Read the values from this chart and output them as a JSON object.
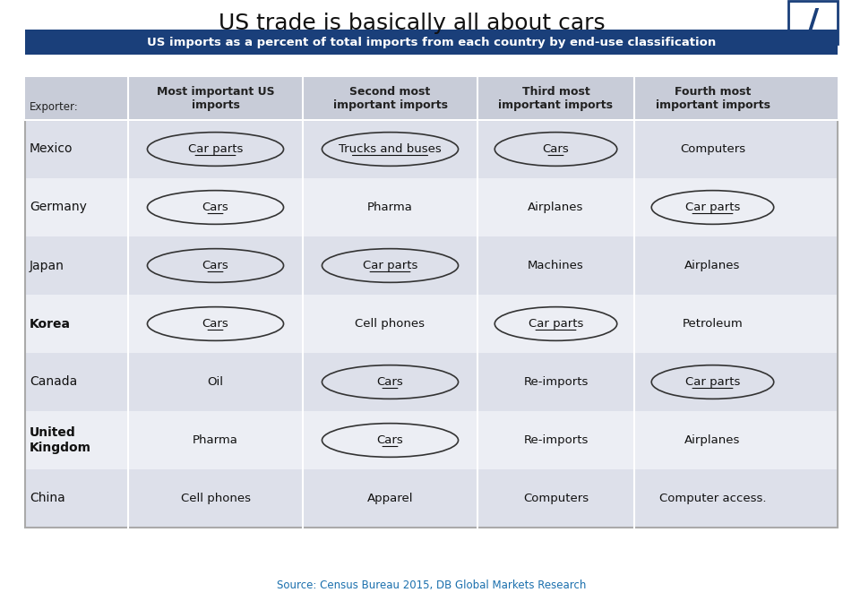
{
  "title": "US trade is basically all about cars",
  "subtitle": "US imports as a percent of total imports from each country by end-use classification",
  "source": "Source: Census Bureau 2015, DB Global Markets Research",
  "header_labels": [
    "Exporter:",
    "Most important US\nimports",
    "Second most\nimportant imports",
    "Third most\nimportant imports",
    "Fourth most\nimportant imports"
  ],
  "rows": [
    {
      "country": "Mexico",
      "bold": false,
      "cells": [
        {
          "text": "Car parts",
          "ellipse": true,
          "underline": true
        },
        {
          "text": "Trucks and buses",
          "ellipse": true,
          "underline": true
        },
        {
          "text": "Cars",
          "ellipse": true,
          "underline": true
        },
        {
          "text": "Computers",
          "ellipse": false,
          "underline": false
        }
      ]
    },
    {
      "country": "Germany",
      "bold": false,
      "cells": [
        {
          "text": "Cars",
          "ellipse": true,
          "underline": true
        },
        {
          "text": "Pharma",
          "ellipse": false,
          "underline": false
        },
        {
          "text": "Airplanes",
          "ellipse": false,
          "underline": false
        },
        {
          "text": "Car parts",
          "ellipse": true,
          "underline": true
        }
      ]
    },
    {
      "country": "Japan",
      "bold": false,
      "cells": [
        {
          "text": "Cars",
          "ellipse": true,
          "underline": true
        },
        {
          "text": "Car parts",
          "ellipse": true,
          "underline": true
        },
        {
          "text": "Machines",
          "ellipse": false,
          "underline": false
        },
        {
          "text": "Airplanes",
          "ellipse": false,
          "underline": false
        }
      ]
    },
    {
      "country": "Korea",
      "bold": true,
      "cells": [
        {
          "text": "Cars",
          "ellipse": true,
          "underline": true
        },
        {
          "text": "Cell phones",
          "ellipse": false,
          "underline": false
        },
        {
          "text": "Car parts",
          "ellipse": true,
          "underline": true
        },
        {
          "text": "Petroleum",
          "ellipse": false,
          "underline": false
        }
      ]
    },
    {
      "country": "Canada",
      "bold": false,
      "cells": [
        {
          "text": "Oil",
          "ellipse": false,
          "underline": false
        },
        {
          "text": "Cars",
          "ellipse": true,
          "underline": true
        },
        {
          "text": "Re-imports",
          "ellipse": false,
          "underline": false
        },
        {
          "text": "Car parts",
          "ellipse": true,
          "underline": true
        }
      ]
    },
    {
      "country": "United\nKingdom",
      "bold": true,
      "cells": [
        {
          "text": "Pharma",
          "ellipse": false,
          "underline": false
        },
        {
          "text": "Cars",
          "ellipse": true,
          "underline": true
        },
        {
          "text": "Re-imports",
          "ellipse": false,
          "underline": false
        },
        {
          "text": "Airplanes",
          "ellipse": false,
          "underline": false
        }
      ]
    },
    {
      "country": "China",
      "bold": false,
      "cells": [
        {
          "text": "Cell phones",
          "ellipse": false,
          "underline": false
        },
        {
          "text": "Apparel",
          "ellipse": false,
          "underline": false
        },
        {
          "text": "Computers",
          "ellipse": false,
          "underline": false
        },
        {
          "text": "Computer access.",
          "ellipse": false,
          "underline": false
        }
      ]
    }
  ],
  "colors": {
    "title_bg": "#ffffff",
    "subtitle_bg": "#1a3f7a",
    "subtitle_text": "#ffffff",
    "header_bg": "#c8ccd8",
    "row_bg_odd": "#dde0ea",
    "row_bg_even": "#eceef4",
    "border": "#ffffff",
    "text_dark": "#222222",
    "source_color": "#1a6fad",
    "logo_border": "#1a3f7a",
    "logo_slash": "#1a3f7a"
  }
}
